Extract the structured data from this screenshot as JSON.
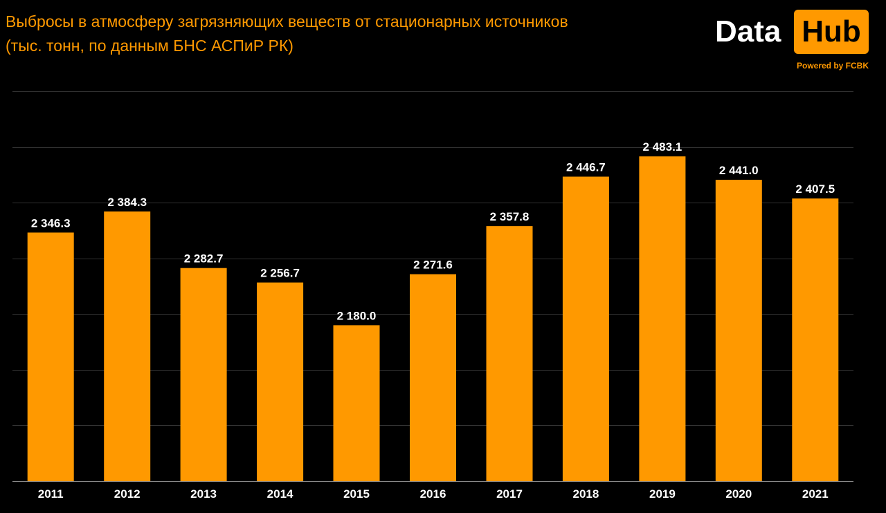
{
  "header": {
    "title_line1": "Выбросы в атмосферу загрязняющих веществ от стационарных источников",
    "title_line2": "(тыс. тонн, по данным БНС АСПиР РК)"
  },
  "logo": {
    "word1": "Data",
    "word2": "Hub",
    "powered": "Powered by FCBK"
  },
  "colors": {
    "background": "#000000",
    "bar": "#ff9900",
    "accent": "#ff9900",
    "text": "#ffffff",
    "grid": "#333333"
  },
  "chart_data": {
    "type": "bar",
    "title": "Выбросы в атмосферу загрязняющих веществ от стационарных источников",
    "subtitle": "(тыс. тонн, по данным БНС АСПиР РК)",
    "categories": [
      "2011",
      "2012",
      "2013",
      "2014",
      "2015",
      "2016",
      "2017",
      "2018",
      "2019",
      "2020",
      "2021"
    ],
    "values": [
      2346.3,
      2384.3,
      2282.7,
      2256.7,
      2180.0,
      2271.6,
      2357.8,
      2446.7,
      2483.1,
      2441.0,
      2407.5
    ],
    "value_labels": [
      "2 346.3",
      "2 384.3",
      "2 282.7",
      "2 256.7",
      "2 180.0",
      "2 271.6",
      "2 357.8",
      "2 446.7",
      "2 483.1",
      "2 441.0",
      "2 407.5"
    ],
    "xlabel": "",
    "ylabel": "",
    "ylim": [
      1900,
      2600
    ],
    "y_grid_step": 100,
    "grid": true,
    "y_tick_labels_visible": false,
    "legend": "none"
  }
}
